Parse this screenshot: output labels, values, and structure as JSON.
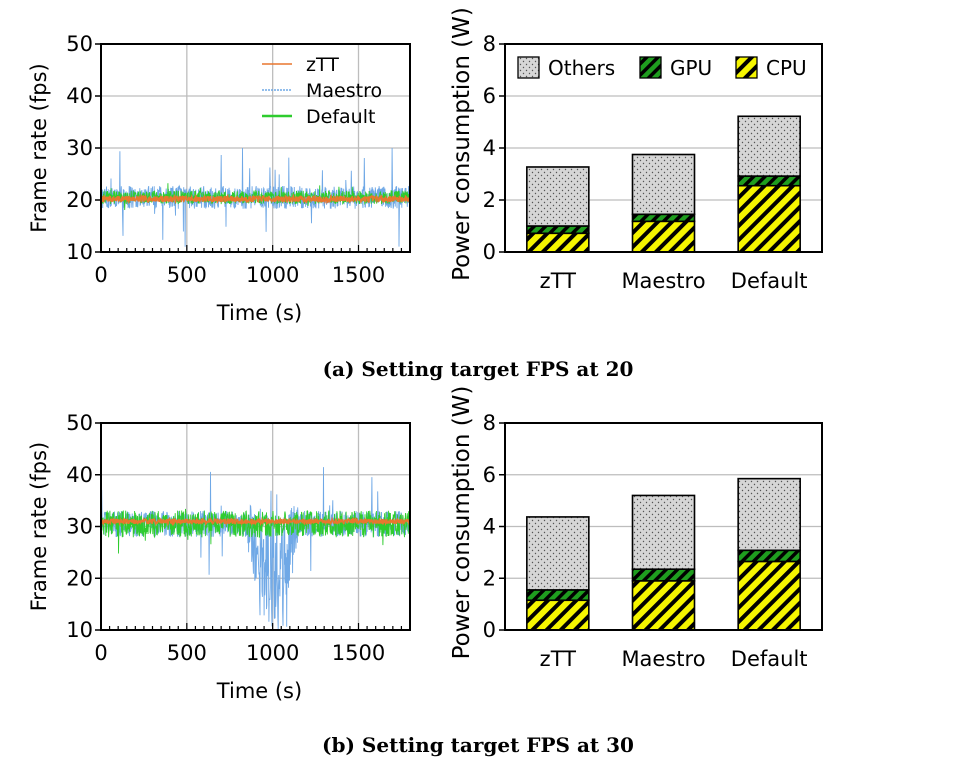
{
  "figure": {
    "caption_a": "(a) Setting target FPS at 20",
    "caption_b": "(b) Setting target FPS at 30"
  },
  "colors": {
    "ztt": "#e8772e",
    "maestro": "#6fa8e6",
    "default": "#2ecc2e",
    "others": "#d6d6d6",
    "gpu_stripe": "#1f9d1f",
    "cpu_stripe": "#f5f500",
    "grid": "#bdbdbd"
  },
  "chart_data": [
    {
      "id": "a-frame",
      "type": "line",
      "xlabel": "Time (s)",
      "ylabel": "Frame rate (fps)",
      "xlim": [
        0,
        1800
      ],
      "ylim": [
        10,
        50
      ],
      "xticks": [
        0,
        500,
        1000,
        1500
      ],
      "yticks": [
        10,
        20,
        30,
        40,
        50
      ],
      "grid": true,
      "legend": "top-right",
      "series": [
        {
          "name": "zTT",
          "mean": 20.2,
          "spread": 0.6
        },
        {
          "name": "Maestro",
          "mean": 20.5,
          "spread": 2.2,
          "min": 11,
          "max": 30
        },
        {
          "name": "Default",
          "mean": 20.5,
          "spread": 1.3
        }
      ],
      "series_colors": [
        "#e8772e",
        "#6fa8e6",
        "#2ecc2e"
      ]
    },
    {
      "id": "a-power",
      "type": "bar",
      "stacked": true,
      "ylabel": "Power consumption (W)",
      "ylim": [
        0,
        8
      ],
      "yticks": [
        0,
        2,
        4,
        6,
        8
      ],
      "grid": true,
      "legend": "top",
      "categories": [
        "zTT",
        "Maestro",
        "Default"
      ],
      "series": [
        {
          "name": "CPU",
          "values": [
            0.72,
            1.18,
            2.55
          ]
        },
        {
          "name": "GPU",
          "values": [
            0.28,
            0.27,
            0.37
          ]
        },
        {
          "name": "Others",
          "values": [
            2.27,
            2.3,
            2.3
          ]
        }
      ],
      "totals": [
        3.27,
        3.75,
        5.22
      ]
    },
    {
      "id": "b-frame",
      "type": "line",
      "xlabel": "Time (s)",
      "ylabel": "Frame rate (fps)",
      "xlim": [
        0,
        1800
      ],
      "ylim": [
        10,
        50
      ],
      "xticks": [
        0,
        500,
        1000,
        1500
      ],
      "yticks": [
        10,
        20,
        30,
        40,
        50
      ],
      "grid": true,
      "series": [
        {
          "name": "zTT",
          "mean": 31.0,
          "spread": 0.5
        },
        {
          "name": "Maestro",
          "mean": 30.5,
          "spread": 2.5,
          "dip_start": 850,
          "dip_end": 1150,
          "dip_min": 10
        },
        {
          "name": "Default",
          "mean": 30.5,
          "spread": 2.6
        }
      ],
      "series_colors": [
        "#e8772e",
        "#6fa8e6",
        "#2ecc2e"
      ]
    },
    {
      "id": "b-power",
      "type": "bar",
      "stacked": true,
      "ylabel": "Power consumption (W)",
      "ylim": [
        0,
        8
      ],
      "yticks": [
        0,
        2,
        4,
        6,
        8
      ],
      "grid": true,
      "categories": [
        "zTT",
        "Maestro",
        "Default"
      ],
      "series": [
        {
          "name": "CPU",
          "values": [
            1.15,
            1.9,
            2.65
          ]
        },
        {
          "name": "GPU",
          "values": [
            0.4,
            0.45,
            0.43
          ]
        },
        {
          "name": "Others",
          "values": [
            2.82,
            2.85,
            2.77
          ]
        }
      ],
      "totals": [
        4.37,
        5.2,
        5.85
      ]
    }
  ]
}
